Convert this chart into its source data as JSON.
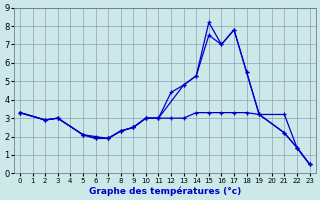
{
  "xlabel": "Graphe des températures (°c)",
  "background_color": "#cce8e8",
  "grid_color": "#9999bb",
  "line_color": "#0000cc",
  "xlim": [
    -0.5,
    23.5
  ],
  "ylim": [
    0,
    9
  ],
  "xticks": [
    0,
    1,
    2,
    3,
    4,
    5,
    6,
    7,
    8,
    9,
    10,
    11,
    12,
    13,
    14,
    15,
    16,
    17,
    18,
    19,
    20,
    21,
    22,
    23
  ],
  "yticks": [
    0,
    1,
    2,
    3,
    4,
    5,
    6,
    7,
    8,
    9
  ],
  "line1_x": [
    0,
    2,
    3,
    5,
    6,
    7,
    8,
    9,
    10,
    11,
    13,
    14,
    15,
    16,
    17,
    18,
    19,
    21,
    22,
    23
  ],
  "line1_y": [
    3.3,
    2.9,
    3.0,
    2.1,
    1.9,
    1.9,
    2.3,
    2.5,
    3.0,
    3.0,
    4.8,
    5.3,
    7.5,
    7.0,
    7.8,
    5.5,
    3.2,
    2.2,
    1.4,
    0.5
  ],
  "line2_x": [
    0,
    2,
    3,
    5,
    6,
    7,
    8,
    9,
    10,
    11,
    12,
    13,
    14,
    15,
    16,
    17,
    18,
    19,
    21,
    22,
    23
  ],
  "line2_y": [
    3.3,
    2.9,
    3.0,
    2.1,
    1.9,
    1.9,
    2.3,
    2.5,
    3.0,
    3.0,
    4.4,
    4.8,
    5.3,
    8.2,
    7.0,
    7.8,
    5.5,
    3.2,
    2.2,
    1.4,
    0.5
  ],
  "line3_x": [
    0,
    2,
    3,
    5,
    6,
    7,
    8,
    9,
    10,
    11,
    12,
    13,
    14,
    15,
    16,
    17,
    18,
    19,
    21,
    22,
    23
  ],
  "line3_y": [
    3.3,
    2.9,
    3.0,
    2.1,
    2.0,
    1.9,
    2.3,
    2.5,
    3.0,
    3.0,
    3.0,
    3.0,
    3.3,
    3.3,
    3.3,
    3.3,
    3.3,
    3.2,
    3.2,
    1.4,
    0.5
  ]
}
